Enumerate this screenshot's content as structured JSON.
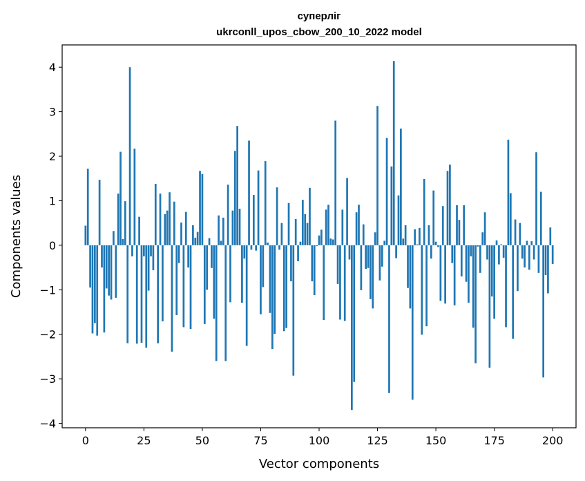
{
  "chart_data": {
    "type": "bar",
    "title": "суперліг",
    "subtitle": "ukrconll_upos_cbow_200_10_2022 model",
    "xlabel": "Vector components",
    "ylabel": "Components values",
    "xlim": [
      -10,
      210
    ],
    "ylim": [
      -4.1,
      4.5
    ],
    "xticks": [
      0,
      25,
      50,
      75,
      100,
      125,
      150,
      175,
      200
    ],
    "yticks": [
      -4,
      -3,
      -2,
      -1,
      0,
      1,
      2,
      3,
      4
    ],
    "grid": false,
    "legend": "none",
    "color": "#1f77b4",
    "values": [
      0.44,
      1.72,
      -0.95,
      -1.98,
      -1.75,
      -2.03,
      1.47,
      -0.5,
      -1.96,
      -0.97,
      -1.13,
      -1.22,
      0.32,
      -1.18,
      1.16,
      2.1,
      0.14,
      0.99,
      -2.2,
      4.0,
      -0.25,
      2.17,
      -2.21,
      0.64,
      -2.19,
      -0.25,
      -2.3,
      -1.02,
      -0.25,
      -0.56,
      1.38,
      -2.2,
      1.16,
      -1.71,
      0.7,
      0.78,
      1.19,
      -2.39,
      0.98,
      -1.57,
      -0.4,
      0.51,
      -1.84,
      0.75,
      -0.5,
      -1.88,
      0.45,
      0.17,
      0.3,
      1.67,
      1.6,
      -1.77,
      -1.0,
      0.16,
      -0.51,
      -1.65,
      -2.6,
      0.67,
      0.1,
      0.62,
      -2.6,
      1.36,
      -1.28,
      0.78,
      2.12,
      2.68,
      0.82,
      -1.29,
      -0.3,
      -2.26,
      2.35,
      -0.1,
      1.13,
      -0.12,
      1.68,
      -1.55,
      -0.94,
      1.89,
      0.06,
      -1.52,
      -2.33,
      -1.99,
      1.3,
      -0.1,
      0.5,
      -1.93,
      -1.86,
      0.95,
      -0.81,
      -2.93,
      0.59,
      -0.36,
      0.08,
      1.02,
      0.7,
      0.5,
      1.29,
      -0.81,
      -1.12,
      -0.02,
      0.22,
      0.35,
      -1.68,
      0.8,
      0.91,
      0.15,
      0.13,
      2.8,
      -0.87,
      -1.67,
      0.8,
      -1.7,
      1.51,
      -0.32,
      -3.7,
      -3.07,
      0.74,
      0.91,
      -1.01,
      0.47,
      -0.53,
      -0.51,
      -1.21,
      -1.42,
      0.29,
      3.13,
      -0.79,
      -0.48,
      0.1,
      2.41,
      -3.32,
      1.77,
      4.14,
      -0.29,
      1.12,
      2.62,
      0.15,
      0.45,
      -0.96,
      -1.42,
      -3.47,
      0.36,
      0.02,
      0.39,
      -2.01,
      1.49,
      -1.82,
      0.45,
      -0.3,
      1.23,
      0.08,
      -0.04,
      -1.25,
      0.88,
      -1.31,
      1.67,
      1.81,
      -0.4,
      -1.35,
      0.9,
      0.57,
      -0.7,
      0.9,
      -0.82,
      -1.29,
      -0.25,
      -1.85,
      -2.65,
      -0.03,
      -0.62,
      0.29,
      0.74,
      -0.32,
      -2.75,
      -1.15,
      -1.65,
      0.11,
      -0.43,
      0.02,
      -0.28,
      -1.84,
      2.37,
      1.17,
      -2.1,
      0.58,
      -1.03,
      0.5,
      -0.3,
      -0.5,
      0.1,
      -0.55,
      0.09,
      -0.32,
      2.09,
      -0.62,
      1.2,
      -2.97,
      -0.67,
      -1.08,
      0.4,
      -0.42
    ]
  }
}
